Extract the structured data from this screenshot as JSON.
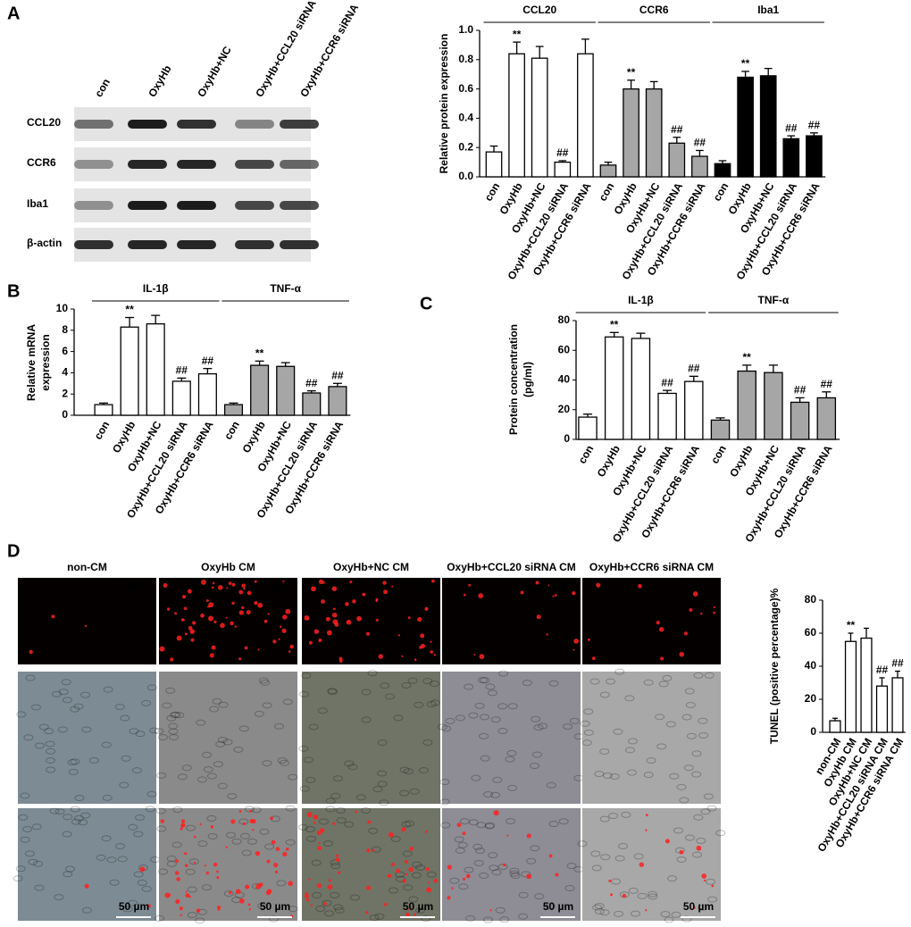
{
  "panel_labels": [
    "A",
    "B",
    "C",
    "D"
  ],
  "blot": {
    "lanes": [
      "con",
      "OxyHb",
      "OxyHb+NC",
      "OxyHb+CCL20 siRNA",
      "OxyHb+CCR6 siRNA"
    ],
    "rows": [
      "CCL20",
      "CCR6",
      "Iba1",
      "β-actin"
    ]
  },
  "micrographs": {
    "columns": [
      "non-CM",
      "OxyHb CM",
      "OxyHb+NC CM",
      "OxyHb+CCL20 siRNA CM",
      "OxyHb+CCR6 siRNA CM"
    ],
    "stain_label": "TUNEL",
    "scale_label": "50 µm"
  },
  "chart_data": [
    {
      "type": "bar",
      "ylabel": "Relative protein expression",
      "categories": [
        "con",
        "OxyHb",
        "OxyHb+NC",
        "OxyHb+CCL20 siRNA",
        "OxyHb+CCR6 siRNA"
      ],
      "ylim": [
        0,
        1
      ],
      "yticks": [
        {
          "value": 0,
          "label": "0.0"
        },
        0.2,
        0.4,
        0.6,
        0.8,
        {
          "value": 1,
          "label": "1.0"
        }
      ],
      "series": [
        {
          "name": "CCL20",
          "color": "#ffffff",
          "values": [
            0.17,
            0.84,
            0.81,
            0.1,
            0.84
          ],
          "errors": [
            0.04,
            0.08,
            0.08,
            0.01,
            0.1
          ],
          "annotations": [
            null,
            "**",
            null,
            "##",
            null
          ]
        },
        {
          "name": "CCR6",
          "color": "#a6a6a6",
          "values": [
            0.08,
            0.6,
            0.6,
            0.23,
            0.14
          ],
          "errors": [
            0.02,
            0.06,
            0.05,
            0.04,
            0.04
          ],
          "annotations": [
            null,
            "**",
            null,
            "##",
            "##"
          ]
        },
        {
          "name": "Iba1",
          "color": "#000000",
          "values": [
            0.09,
            0.68,
            0.69,
            0.26,
            0.28
          ],
          "errors": [
            0.02,
            0.04,
            0.05,
            0.02,
            0.02
          ],
          "annotations": [
            null,
            "**",
            null,
            "##",
            "##"
          ]
        }
      ]
    },
    {
      "type": "bar",
      "ylabel": [
        "Relative mRNA",
        "expression"
      ],
      "categories": [
        "con",
        "OxyHb",
        "OxyHb+NC",
        "OxyHb+CCL20 siRNA",
        "OxyHb+CCR6 siRNA"
      ],
      "ylim": [
        0,
        10
      ],
      "yticks": [
        0,
        2,
        4,
        6,
        8,
        10
      ],
      "series": [
        {
          "name": "IL-1β",
          "color": "#ffffff",
          "values": [
            1,
            8.3,
            8.6,
            3.2,
            3.9
          ],
          "errors": [
            0.15,
            0.9,
            0.8,
            0.3,
            0.5
          ],
          "annotations": [
            null,
            "**",
            null,
            "##",
            "##"
          ]
        },
        {
          "name": "TNF-α",
          "color": "#a6a6a6",
          "values": [
            1,
            4.7,
            4.6,
            2.1,
            2.7
          ],
          "errors": [
            0.15,
            0.4,
            0.35,
            0.2,
            0.3
          ],
          "annotations": [
            null,
            "**",
            null,
            "##",
            "##"
          ]
        }
      ]
    },
    {
      "type": "bar",
      "ylabel": [
        "Protein concentration",
        "(pg/ml)"
      ],
      "categories": [
        "con",
        "OxyHb",
        "OxyHb+NC",
        "OxyHb+CCL20 siRNA",
        "OxyHb+CCR6 siRNA"
      ],
      "ylim": [
        0,
        80
      ],
      "yticks": [
        0,
        20,
        40,
        60,
        80
      ],
      "series": [
        {
          "name": "IL-1β",
          "color": "#ffffff",
          "values": [
            15,
            69,
            68,
            31,
            39
          ],
          "errors": [
            2,
            3,
            3.5,
            2,
            3.5
          ],
          "annotations": [
            null,
            "**",
            null,
            "##",
            "##"
          ]
        },
        {
          "name": "TNF-α",
          "color": "#a6a6a6",
          "values": [
            13,
            46,
            45,
            25,
            28
          ],
          "errors": [
            1.5,
            4,
            5,
            3,
            4
          ],
          "annotations": [
            null,
            "**",
            null,
            "##",
            "##"
          ]
        }
      ]
    },
    {
      "type": "bar",
      "ylabel": "TUNEL (positive percentage)%",
      "categories": [
        "non-CM",
        "OxyHb CM",
        "OxyHb+NC CM",
        "OxyHb+CCL20 siRNA CM",
        "OxyHb+CCR6 siRNA CM"
      ],
      "ylim": [
        0,
        80
      ],
      "yticks": [
        0,
        20,
        40,
        60,
        80
      ],
      "series": [
        {
          "color": "#ffffff",
          "values": [
            7,
            55,
            57,
            28,
            33
          ],
          "errors": [
            1.5,
            5,
            6,
            5,
            4
          ],
          "annotations": [
            null,
            "**",
            null,
            "##",
            "##"
          ]
        }
      ]
    }
  ]
}
